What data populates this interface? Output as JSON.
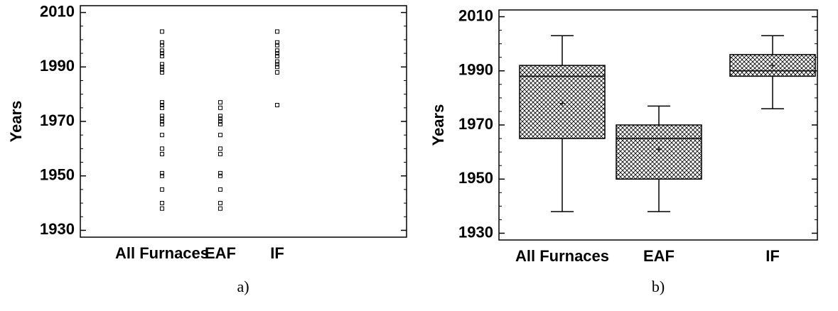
{
  "chart_data": [
    {
      "type": "strip",
      "caption": "a)",
      "ylabel": "Years",
      "categories": [
        "All Furnaces",
        "EAF",
        "IF"
      ],
      "values": [
        [
          2003,
          1999,
          1998,
          1996,
          1995,
          1994,
          1991,
          1990,
          1989,
          1988,
          1977,
          1976,
          1975,
          1972,
          1971,
          1970,
          1969,
          1965,
          1960,
          1958,
          1951,
          1950,
          1945,
          1940,
          1938
        ],
        [
          1977,
          1975,
          1972,
          1971,
          1970,
          1969,
          1965,
          1960,
          1958,
          1951,
          1950,
          1945,
          1940,
          1938
        ],
        [
          2003,
          1999,
          1998,
          1996,
          1995,
          1994,
          1992,
          1991,
          1990,
          1988,
          1976
        ]
      ],
      "color": "#000000",
      "ylim": [
        1927.5,
        2012.5
      ],
      "yticks": [
        1930,
        1950,
        1970,
        1990,
        2010
      ],
      "yticks_minor": [
        1935,
        1940,
        1945,
        1955,
        1960,
        1965,
        1975,
        1980,
        1985,
        1995,
        2000,
        2005
      ]
    },
    {
      "type": "box",
      "caption": "b)",
      "ylabel": "Years",
      "categories": [
        "All Furnaces",
        "EAF",
        "IF"
      ],
      "boxes": [
        {
          "min": 1938,
          "q1": 1965,
          "median": 1988,
          "q3": 1992,
          "max": 2003,
          "mean": 1978
        },
        {
          "min": 1938,
          "q1": 1950,
          "median": 1965,
          "q3": 1970,
          "max": 1977,
          "mean": 1961
        },
        {
          "min": 1976,
          "q1": 1988,
          "median": 1990,
          "q3": 1996,
          "max": 2003,
          "mean": 1992
        }
      ],
      "color": "#000000",
      "ylim": [
        1927.5,
        2012.5
      ],
      "yticks": [
        1930,
        1950,
        1970,
        1990,
        2010
      ],
      "yticks_minor": [
        1935,
        1940,
        1945,
        1955,
        1960,
        1965,
        1975,
        1980,
        1985,
        1995,
        2000,
        2005
      ]
    }
  ]
}
